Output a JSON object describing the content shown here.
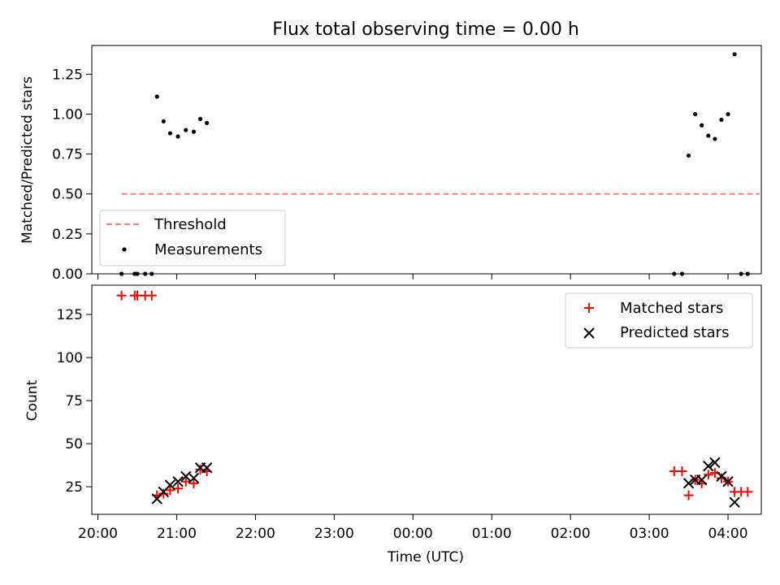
{
  "chart_data": [
    {
      "type": "scatter",
      "title": "Flux total observing time = 0.00 h",
      "ylabel": "Matched/Predicted stars",
      "xlim": [
        "20:00",
        "04:30"
      ],
      "ylim": [
        0,
        1.43
      ],
      "x_ticks": [
        "20:00",
        "21:00",
        "22:00",
        "23:00",
        "00:00",
        "01:00",
        "02:00",
        "03:00",
        "04:00"
      ],
      "y_ticks": [
        "0.00",
        "0.25",
        "0.50",
        "0.75",
        "1.00",
        "1.25"
      ],
      "legend_position": "lower-left",
      "grid": false,
      "threshold": {
        "name": "Threshold",
        "value": 0.5,
        "x_range": [
          "20:18",
          "04:24"
        ],
        "color": "#ff7f7f",
        "style": "dashed"
      },
      "series": [
        {
          "name": "Measurements",
          "marker": "dot",
          "color": "#000000",
          "points": [
            {
              "x": "20:18",
              "y": 0.0
            },
            {
              "x": "20:28",
              "y": 0.0
            },
            {
              "x": "20:30",
              "y": 0.0
            },
            {
              "x": "20:36",
              "y": 0.0
            },
            {
              "x": "20:41",
              "y": 0.0
            },
            {
              "x": "20:45",
              "y": 1.11
            },
            {
              "x": "20:50",
              "y": 0.955
            },
            {
              "x": "20:55",
              "y": 0.88
            },
            {
              "x": "21:01",
              "y": 0.86
            },
            {
              "x": "21:07",
              "y": 0.9
            },
            {
              "x": "21:13",
              "y": 0.89
            },
            {
              "x": "21:18",
              "y": 0.97
            },
            {
              "x": "21:23",
              "y": 0.945
            },
            {
              "x": "03:19",
              "y": 0.0
            },
            {
              "x": "03:25",
              "y": 0.0
            },
            {
              "x": "03:30",
              "y": 0.74
            },
            {
              "x": "03:35",
              "y": 1.0
            },
            {
              "x": "03:40",
              "y": 0.93
            },
            {
              "x": "03:45",
              "y": 0.865
            },
            {
              "x": "03:50",
              "y": 0.845
            },
            {
              "x": "03:55",
              "y": 0.965
            },
            {
              "x": "04:00",
              "y": 1.0
            },
            {
              "x": "04:05",
              "y": 1.375
            },
            {
              "x": "04:10",
              "y": 0.0
            },
            {
              "x": "04:15",
              "y": 0.0
            }
          ]
        }
      ]
    },
    {
      "type": "scatter",
      "xlabel": "Time (UTC)",
      "ylabel": "Count",
      "xlim": [
        "20:00",
        "04:30"
      ],
      "ylim": [
        9,
        142
      ],
      "x_ticks": [
        "20:00",
        "21:00",
        "22:00",
        "23:00",
        "00:00",
        "01:00",
        "02:00",
        "03:00",
        "04:00"
      ],
      "y_ticks": [
        "25",
        "50",
        "75",
        "100",
        "125"
      ],
      "legend_position": "upper-right",
      "grid": false,
      "series": [
        {
          "name": "Matched stars",
          "marker": "plus",
          "color": "#ff0000",
          "points": [
            {
              "x": "20:18",
              "y": 136
            },
            {
              "x": "20:28",
              "y": 136
            },
            {
              "x": "20:30",
              "y": 136
            },
            {
              "x": "20:36",
              "y": 136
            },
            {
              "x": "20:41",
              "y": 136
            },
            {
              "x": "20:45",
              "y": 20
            },
            {
              "x": "20:50",
              "y": 21
            },
            {
              "x": "20:55",
              "y": 23
            },
            {
              "x": "21:01",
              "y": 24
            },
            {
              "x": "21:07",
              "y": 28
            },
            {
              "x": "21:13",
              "y": 27
            },
            {
              "x": "21:18",
              "y": 35
            },
            {
              "x": "21:23",
              "y": 34
            },
            {
              "x": "03:19",
              "y": 34
            },
            {
              "x": "03:25",
              "y": 34
            },
            {
              "x": "03:30",
              "y": 20
            },
            {
              "x": "03:35",
              "y": 29
            },
            {
              "x": "03:40",
              "y": 27
            },
            {
              "x": "03:45",
              "y": 32
            },
            {
              "x": "03:50",
              "y": 33
            },
            {
              "x": "03:55",
              "y": 30
            },
            {
              "x": "04:00",
              "y": 28
            },
            {
              "x": "04:05",
              "y": 22
            },
            {
              "x": "04:10",
              "y": 22
            },
            {
              "x": "04:15",
              "y": 22
            }
          ]
        },
        {
          "name": "Predicted stars",
          "marker": "x",
          "color": "#000000",
          "points": [
            {
              "x": "20:45",
              "y": 18
            },
            {
              "x": "20:50",
              "y": 22
            },
            {
              "x": "20:55",
              "y": 26
            },
            {
              "x": "21:01",
              "y": 28
            },
            {
              "x": "21:07",
              "y": 31
            },
            {
              "x": "21:13",
              "y": 30
            },
            {
              "x": "21:18",
              "y": 36
            },
            {
              "x": "21:23",
              "y": 36
            },
            {
              "x": "03:30",
              "y": 27
            },
            {
              "x": "03:35",
              "y": 29
            },
            {
              "x": "03:40",
              "y": 29
            },
            {
              "x": "03:45",
              "y": 37
            },
            {
              "x": "03:50",
              "y": 39
            },
            {
              "x": "03:55",
              "y": 31
            },
            {
              "x": "04:00",
              "y": 28
            },
            {
              "x": "04:05",
              "y": 16
            }
          ]
        }
      ]
    }
  ]
}
